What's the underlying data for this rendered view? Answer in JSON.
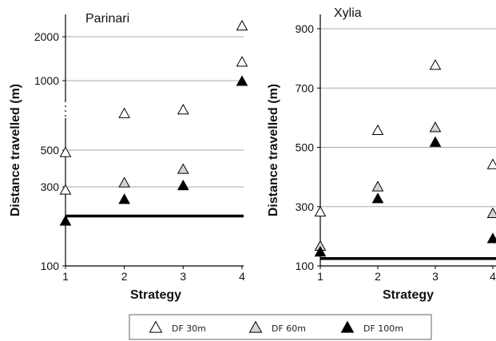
{
  "chart_data": [
    {
      "type": "scatter",
      "title": "Parinari",
      "xlabel": "Strategy",
      "ylabel": "Distance travelled (m)",
      "x_ticks": [
        "1",
        "2",
        "3",
        "4"
      ],
      "y_ticks": [
        "100",
        "300",
        "500",
        "1000",
        "2000"
      ],
      "xlim": [
        1,
        4
      ],
      "axis_break": "between 500 and 1000",
      "gridlines": [
        300,
        500,
        1000,
        2000
      ],
      "series": [
        {
          "name": "DF 30m",
          "color": "#ffffff",
          "values": [
            {
              "x": 1,
              "y": 285
            },
            {
              "x": 1,
              "y": 480
            },
            {
              "x": 2,
              "y": 590
            },
            {
              "x": 3,
              "y": 625
            },
            {
              "x": 4,
              "y": 1330
            },
            {
              "x": 4,
              "y": 2350
            }
          ]
        },
        {
          "name": "DF 60m",
          "color": "#d4d4d4",
          "values": [
            {
              "x": 2,
              "y": 315
            },
            {
              "x": 3,
              "y": 380
            }
          ]
        },
        {
          "name": "DF 100m",
          "color": "#000000",
          "values": [
            {
              "x": 1,
              "y": 185
            },
            {
              "x": 2,
              "y": 250
            },
            {
              "x": 3,
              "y": 303
            },
            {
              "x": 4,
              "y": 980
            }
          ]
        }
      ],
      "reference_line": {
        "y": 200
      }
    },
    {
      "type": "scatter",
      "title": "Xylia",
      "xlabel": "Strategy",
      "ylabel": "Distance travelled (m)",
      "x_ticks": [
        "1",
        "2",
        "3",
        "4"
      ],
      "y_ticks": [
        "100",
        "300",
        "500",
        "700",
        "900"
      ],
      "xlim": [
        1,
        4
      ],
      "ylim": [
        100,
        900
      ],
      "gridlines": [
        300,
        500,
        700,
        900
      ],
      "series": [
        {
          "name": "DF 30m",
          "color": "#ffffff",
          "values": [
            {
              "x": 1,
              "y": 280
            },
            {
              "x": 2,
              "y": 555
            },
            {
              "x": 3,
              "y": 775
            },
            {
              "x": 4,
              "y": 440
            }
          ]
        },
        {
          "name": "DF 60m",
          "color": "#d4d4d4",
          "values": [
            {
              "x": 1,
              "y": 165
            },
            {
              "x": 2,
              "y": 365
            },
            {
              "x": 3,
              "y": 565
            },
            {
              "x": 4,
              "y": 275
            }
          ]
        },
        {
          "name": "DF 100m",
          "color": "#000000",
          "values": [
            {
              "x": 1,
              "y": 145
            },
            {
              "x": 2,
              "y": 325
            },
            {
              "x": 3,
              "y": 515
            },
            {
              "x": 4,
              "y": 190
            }
          ]
        }
      ],
      "reference_line": {
        "y": 125
      }
    }
  ],
  "legend": {
    "position": "bottom",
    "items": [
      {
        "label": "DF 30m",
        "fill": "#ffffff"
      },
      {
        "label": "DF 60m",
        "fill": "#d4d4d4"
      },
      {
        "label": "DF 100m",
        "fill": "#000000"
      }
    ]
  }
}
